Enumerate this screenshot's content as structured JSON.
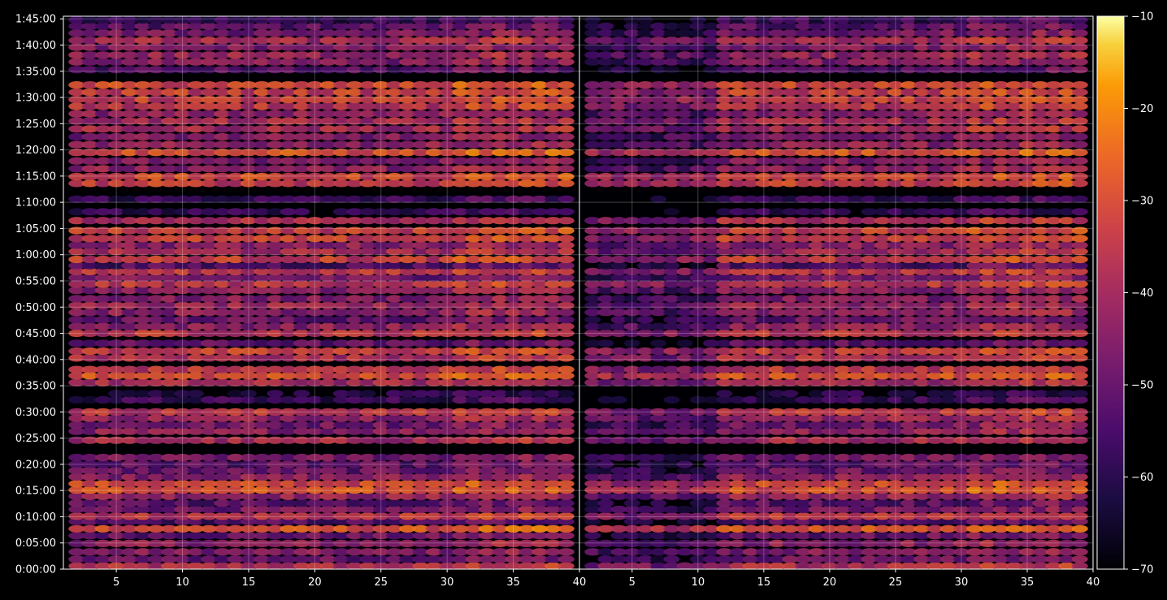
{
  "chart_data": {
    "type": "heatmap",
    "panels": [
      {
        "name": "",
        "x_ticks": [
          "5",
          "10",
          "15",
          "20",
          "25",
          "30",
          "35",
          "40"
        ],
        "x_tick_values": [
          5,
          10,
          15,
          20,
          25,
          30,
          35,
          40
        ],
        "xlim": [
          1,
          40
        ]
      },
      {
        "name": "",
        "x_ticks": [
          "5",
          "10",
          "15",
          "20",
          "25",
          "30",
          "35",
          "40"
        ],
        "x_tick_values": [
          5,
          10,
          15,
          20,
          25,
          30,
          35,
          40
        ],
        "xlim": [
          1,
          40
        ]
      }
    ],
    "y_ticks": [
      "0:00:00",
      "0:05:00",
      "0:10:00",
      "0:15:00",
      "0:20:00",
      "0:25:00",
      "0:30:00",
      "0:35:00",
      "0:40:00",
      "0:45:00",
      "0:50:00",
      "0:55:00",
      "1:00:00",
      "1:05:00",
      "1:10:00",
      "1:15:00",
      "1:20:00",
      "1:25:00",
      "1:30:00",
      "1:35:00",
      "1:40:00",
      "1:45:00"
    ],
    "y_tick_values_minutes": [
      0,
      5,
      10,
      15,
      20,
      25,
      30,
      35,
      40,
      45,
      50,
      55,
      60,
      65,
      70,
      75,
      80,
      85,
      90,
      95,
      100,
      105
    ],
    "ylim_minutes": [
      0,
      105.5
    ],
    "colorbar": {
      "ticks": [
        "−10",
        "−20",
        "−30",
        "−40",
        "−50",
        "−60",
        "−70"
      ],
      "tick_values": [
        -10,
        -20,
        -30,
        -40,
        -50,
        -60,
        -70
      ],
      "range": [
        -70,
        -10
      ],
      "colormap": "inferno"
    },
    "bands": [
      {
        "t": 0.6,
        "v": -38
      },
      {
        "t": 1.9,
        "v": -50
      },
      {
        "t": 3.3,
        "v": -46
      },
      {
        "t": 4.9,
        "v": -44
      },
      {
        "t": 6.4,
        "v": -50
      },
      {
        "t": 7.7,
        "v": -30
      },
      {
        "t": 9.1,
        "v": -54
      },
      {
        "t": 10.1,
        "v": -36
      },
      {
        "t": 11.4,
        "v": -48
      },
      {
        "t": 12.6,
        "v": -52
      },
      {
        "t": 13.9,
        "v": -42
      },
      {
        "t": 15.1,
        "v": -30
      },
      {
        "t": 16.3,
        "v": -32
      },
      {
        "t": 17.6,
        "v": -44
      },
      {
        "t": 18.8,
        "v": -50
      },
      {
        "t": 20.0,
        "v": -52
      },
      {
        "t": 21.3,
        "v": -48
      },
      {
        "t": 24.6,
        "v": -40
      },
      {
        "t": 26.3,
        "v": -44
      },
      {
        "t": 27.5,
        "v": -48
      },
      {
        "t": 28.8,
        "v": -42
      },
      {
        "t": 30.0,
        "v": -36
      },
      {
        "t": 32.3,
        "v": -58
      },
      {
        "t": 33.5,
        "v": -62
      },
      {
        "t": 35.6,
        "v": -40
      },
      {
        "t": 36.9,
        "v": -30
      },
      {
        "t": 38.1,
        "v": -36
      },
      {
        "t": 40.3,
        "v": -38
      },
      {
        "t": 41.6,
        "v": -34
      },
      {
        "t": 43.1,
        "v": -52
      },
      {
        "t": 45.0,
        "v": -36
      },
      {
        "t": 46.3,
        "v": -44
      },
      {
        "t": 47.6,
        "v": -50
      },
      {
        "t": 49.0,
        "v": -44
      },
      {
        "t": 50.3,
        "v": -42
      },
      {
        "t": 51.6,
        "v": -46
      },
      {
        "t": 53.2,
        "v": -44
      },
      {
        "t": 54.4,
        "v": -36
      },
      {
        "t": 55.6,
        "v": -48
      },
      {
        "t": 56.8,
        "v": -36
      },
      {
        "t": 57.9,
        "v": -54
      },
      {
        "t": 59.1,
        "v": -34
      },
      {
        "t": 60.6,
        "v": -40
      },
      {
        "t": 61.8,
        "v": -44
      },
      {
        "t": 63.1,
        "v": -34
      },
      {
        "t": 64.6,
        "v": -34
      },
      {
        "t": 66.5,
        "v": -38
      },
      {
        "t": 68.2,
        "v": -60
      },
      {
        "t": 70.6,
        "v": -58
      },
      {
        "t": 73.6,
        "v": -34
      },
      {
        "t": 74.9,
        "v": -32
      },
      {
        "t": 76.4,
        "v": -44
      },
      {
        "t": 77.9,
        "v": -46
      },
      {
        "t": 79.5,
        "v": -30
      },
      {
        "t": 81.0,
        "v": -44
      },
      {
        "t": 82.5,
        "v": -46
      },
      {
        "t": 84.0,
        "v": -40
      },
      {
        "t": 85.5,
        "v": -40
      },
      {
        "t": 86.9,
        "v": -44
      },
      {
        "t": 88.3,
        "v": -36
      },
      {
        "t": 89.6,
        "v": -34
      },
      {
        "t": 91.0,
        "v": -34
      },
      {
        "t": 92.4,
        "v": -32
      },
      {
        "t": 95.3,
        "v": -54
      },
      {
        "t": 96.8,
        "v": -46
      },
      {
        "t": 98.1,
        "v": -42
      },
      {
        "t": 99.6,
        "v": -46
      },
      {
        "t": 100.9,
        "v": -40
      },
      {
        "t": 102.3,
        "v": -48
      },
      {
        "t": 103.6,
        "v": -52
      },
      {
        "t": 104.8,
        "v": -58
      }
    ]
  }
}
